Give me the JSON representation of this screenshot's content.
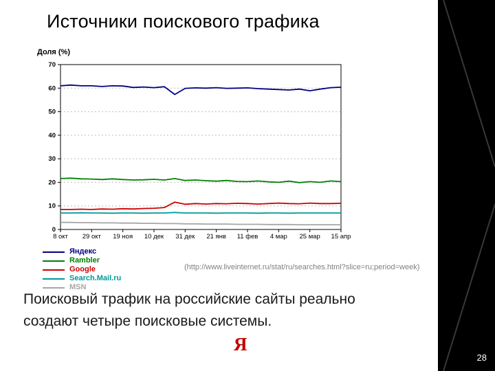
{
  "slide": {
    "title": "Источники поискового трафика",
    "source_note": "(http://www.liveinternet.ru/stat/ru/searches.html?slice=ru;period=week)",
    "body_text": "Поисковый трафик на российские сайты реально создают четыре поисковые системы.",
    "page_number": "28",
    "logo_letter": "Я",
    "logo_color": "#c00000",
    "band_color": "#000000"
  },
  "chart_data": {
    "type": "line",
    "title": "",
    "xlabel": "",
    "ylabel": "Доля (%)",
    "ylim": [
      0,
      70
    ],
    "yticks": [
      0,
      10,
      20,
      30,
      40,
      50,
      60,
      70
    ],
    "grid": "dotted-horizontal",
    "legend_position": "below-left",
    "xtick_every": 3,
    "x_tick_labels": [
      "8 окт",
      "29 окт",
      "19 ноя",
      "10 дек",
      "31 дек",
      "21 янв",
      "11 фев",
      "4 мар",
      "25 мар",
      "15 апр"
    ],
    "series": [
      {
        "name": "Яндекс",
        "color": "#000080",
        "values": [
          61,
          61.3,
          61,
          61,
          60.7,
          61,
          60.9,
          60.3,
          60.5,
          60.2,
          60.6,
          57.3,
          59.9,
          60.1,
          60,
          60.2,
          59.9,
          60,
          60.1,
          59.8,
          59.6,
          59.4,
          59.2,
          59.6,
          58.9,
          59.6,
          60.2,
          60.4
        ]
      },
      {
        "name": "Rambler",
        "color": "#008000",
        "values": [
          21.6,
          21.8,
          21.5,
          21.4,
          21.2,
          21.5,
          21.2,
          21,
          21.1,
          21.3,
          21,
          21.6,
          20.8,
          21,
          20.7,
          20.5,
          20.8,
          20.4,
          20.3,
          20.6,
          20.2,
          20,
          20.5,
          19.9,
          20.3,
          20,
          20.6,
          20.3
        ]
      },
      {
        "name": "Google",
        "color": "#cc0000",
        "values": [
          8.5,
          8.5,
          8.6,
          8.5,
          8.7,
          8.6,
          8.8,
          8.7,
          8.9,
          9,
          9.3,
          11.6,
          10.7,
          11,
          10.8,
          11,
          10.9,
          11.1,
          11,
          10.8,
          11,
          11.2,
          11,
          10.9,
          11.2,
          11,
          11,
          11.1
        ]
      },
      {
        "name": "Search.Mail.ru",
        "color": "#009999",
        "values": [
          7,
          7,
          7.1,
          7,
          7,
          6.9,
          7,
          7,
          6.9,
          7,
          7,
          7.2,
          7,
          7,
          7,
          6.9,
          7,
          7,
          7,
          6.9,
          7,
          7,
          6.9,
          7,
          7,
          7,
          7,
          7
        ]
      },
      {
        "name": "MSN",
        "color": "#a6a6a6",
        "values": [
          3,
          3,
          2.9,
          2.9,
          2.8,
          2.8,
          2.7,
          2.7,
          2.6,
          2.6,
          2.5,
          2.5,
          2.4,
          2.4,
          2.3,
          2.3,
          2.3,
          2.2,
          2.2,
          2.2,
          2.1,
          2.1,
          2.1,
          2,
          2,
          2,
          2,
          2
        ]
      }
    ]
  }
}
